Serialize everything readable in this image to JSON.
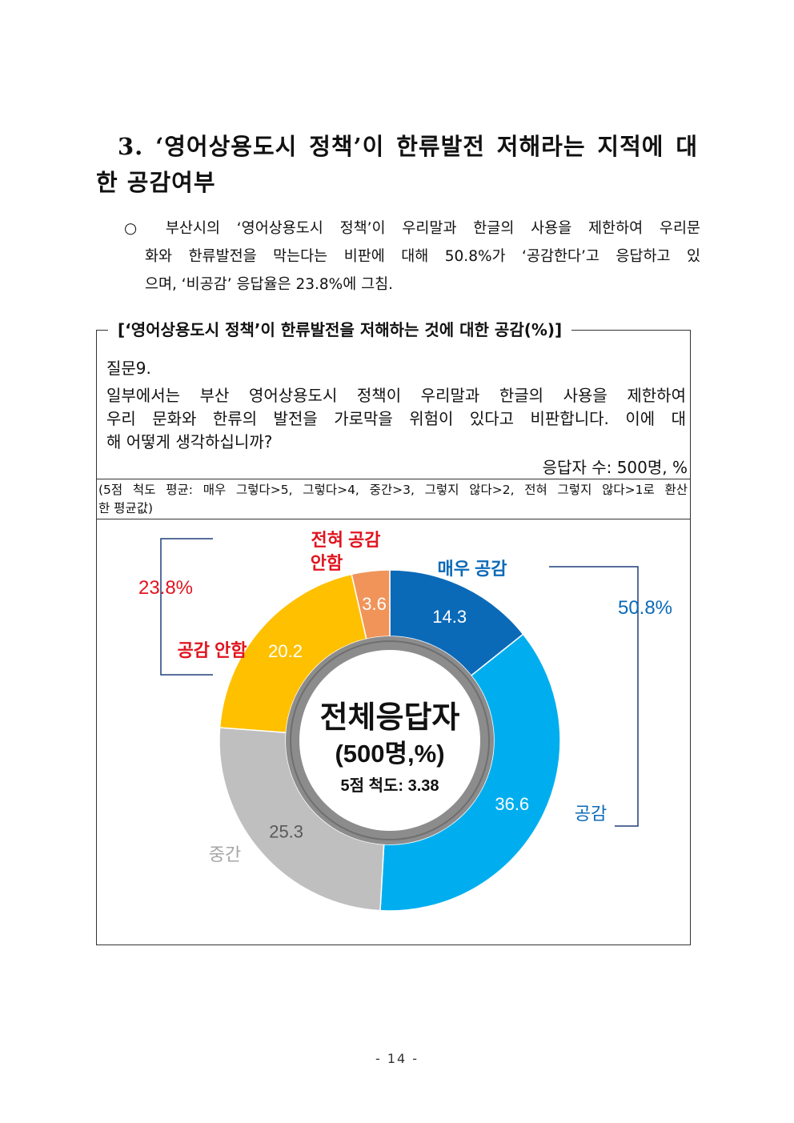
{
  "section": {
    "heading_line1": "3. ‘영어상용도시 정책’이 한류발전 저해라는 지적에 대",
    "heading_line2": "한 공감여부",
    "bullet_symbol": "○",
    "bullet_line1": "부산시의 ‘영어상용도시 정책’이 우리말과 한글의 사용을 제한하여 우리문",
    "bullet_line2": "화와 한류발전을 막는다는 비판에 대해 50.8%가 ‘공감한다’고 응답하고 있",
    "bullet_line3": "으며, ‘비공감’ 응답율은 23.8%에 그침."
  },
  "box": {
    "title": "[‘영어상용도시 정책’이 한류발전을 저해하는 것에 대한 공감(%)]",
    "question_label": "질문9.",
    "question_line1": "일부에서는 부산 영어상용도시 정책이 우리말과 한글의 사용을 제한하여",
    "question_line2": "우리 문화와 한류의 발전을 가로막을 위험이 있다고 비판합니다. 이에 대",
    "question_line3": "해 어떻게 생각하십니까?",
    "respondents": "응답자 수: 500명, %",
    "scale_line1": "(5점 척도 평균: 매우 그렇다>5, 그렇다>4, 중간>3, 그렇지 않다>2, 전혀 그렇지 않다>1로 환산",
    "scale_line2": "한 평균값)"
  },
  "chart_data": {
    "type": "pie",
    "donut": true,
    "slices": [
      {
        "label": "매우 공감",
        "value": 14.3,
        "color": "#0b6ab8"
      },
      {
        "label": "공감",
        "value": 36.6,
        "color": "#00aeef"
      },
      {
        "label": "중간",
        "value": 25.3,
        "color": "#bfbfbf"
      },
      {
        "label": "공감 안함",
        "value": 20.2,
        "color": "#ffc000"
      },
      {
        "label": "전혀 공감 안함",
        "value": 3.6,
        "color": "#f0945a"
      }
    ],
    "slice_value_labels": [
      "14.3",
      "36.6",
      "25.3",
      "20.2",
      "3.6"
    ],
    "slice_name_labels": {
      "very_agree": "매우 공감",
      "agree": "공감",
      "neutral": "중간",
      "disagree": "공감 안함",
      "strongly_disagree_line1": "전혀 공감",
      "strongly_disagree_line2": "안함"
    },
    "center_title": "전체응답자",
    "center_subtitle": "(500명,%)",
    "center_scale": "5점 척도: 3.38",
    "group_agree_total": "50.8%",
    "group_disagree_total": "23.8%",
    "colors": {
      "very_agree": "#0b6ab8",
      "agree": "#00aeef",
      "neutral": "#bfbfbf",
      "disagree": "#ffc000",
      "strongly_disagree": "#f0945a",
      "negative_text": "#e0141e",
      "positive_text": "#0b6ab8",
      "neutral_text": "#a6a6a6",
      "bracket": "#1f3f7a",
      "ring": "#8c8c8c"
    }
  },
  "footer": {
    "page_number": "- 14 -"
  }
}
